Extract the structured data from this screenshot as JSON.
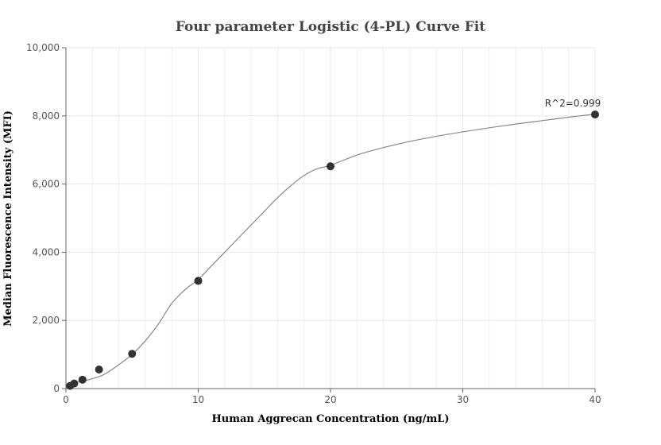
{
  "chart_data": {
    "type": "scatter",
    "title": "Four parameter Logistic (4-PL) Curve Fit",
    "xlabel": "Human Aggrecan Concentration (ng/mL)",
    "ylabel": "Median Fluorescence Intensity (MFI)",
    "xlim": [
      0,
      40
    ],
    "ylim": [
      0,
      10000
    ],
    "x_ticks": [
      0,
      10,
      20,
      30,
      40
    ],
    "x_tick_labels": [
      "0",
      "10",
      "20",
      "30",
      "40"
    ],
    "y_ticks": [
      0,
      2000,
      4000,
      6000,
      8000,
      10000
    ],
    "y_tick_labels": [
      "0",
      "2,000",
      "4,000",
      "6,000",
      "8,000",
      "10,000"
    ],
    "grid": true,
    "series": [
      {
        "kind": "points",
        "x": [
          0.3125,
          0.625,
          1.25,
          2.5,
          5,
          10,
          20,
          40
        ],
        "y": [
          80,
          150,
          260,
          560,
          1020,
          3160,
          6520,
          8040
        ],
        "color": "#333333"
      },
      {
        "kind": "fit-curve",
        "x": [
          0,
          0.5,
          1,
          1.5,
          2,
          2.5,
          3,
          4,
          5,
          6,
          7,
          8,
          9,
          10,
          11,
          12,
          13,
          14,
          15,
          16,
          17,
          18,
          19,
          20,
          22,
          24,
          26,
          28,
          30,
          32,
          34,
          36,
          38,
          40
        ],
        "y": [
          130,
          150,
          200,
          240,
          290,
          350,
          440,
          700,
          1000,
          1400,
          1900,
          2500,
          2900,
          3200,
          3600,
          4000,
          4400,
          4800,
          5200,
          5600,
          5950,
          6250,
          6450,
          6550,
          6850,
          7070,
          7250,
          7400,
          7530,
          7650,
          7760,
          7860,
          7960,
          8050
        ],
        "color": "#888888"
      }
    ],
    "annotations": [
      {
        "text": "R^2=0.999",
        "x": 40,
        "y": 8040
      }
    ]
  },
  "colors": {
    "grid": "#e6e6f0",
    "axis": "#666666",
    "point": "#333333",
    "curve": "#888888"
  }
}
